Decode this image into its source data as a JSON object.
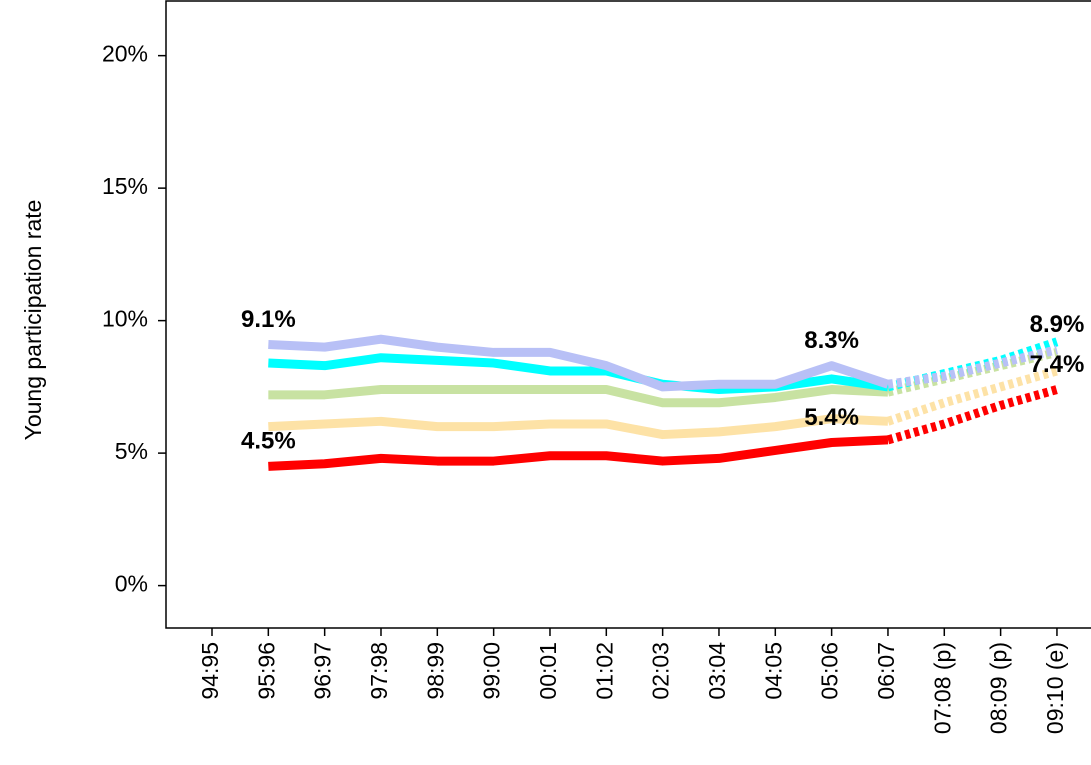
{
  "chart_data": {
    "type": "line",
    "y_label": "Young participation rate",
    "categories": [
      "94:95",
      "95:96",
      "96:97",
      "97:98",
      "98:99",
      "99:00",
      "00:01",
      "01:02",
      "02:03",
      "03:04",
      "04:05",
      "05:06",
      "06:07",
      "07:08 (p)",
      "08:09 (p)",
      "09:10 (e)"
    ],
    "dashed_from": 12,
    "ylim": [
      -1.6,
      22.1
    ],
    "yticks": [
      {
        "value": 0,
        "label": "0%"
      },
      {
        "value": 5,
        "label": "5%"
      },
      {
        "value": 10,
        "label": "10%"
      },
      {
        "value": 15,
        "label": "15%"
      },
      {
        "value": 20,
        "label": "20%"
      }
    ],
    "series": [
      {
        "color": "#ff0000",
        "values": [
          null,
          4.5,
          4.6,
          4.8,
          4.7,
          4.7,
          4.9,
          4.9,
          4.7,
          4.8,
          5.1,
          5.4,
          5.5,
          6.1,
          6.8,
          7.4
        ],
        "value_labels": [
          null,
          "4.5%",
          null,
          null,
          null,
          null,
          null,
          null,
          null,
          null,
          null,
          "5.4%",
          null,
          null,
          null,
          "7.4%"
        ]
      },
      {
        "color": "#fde2a6",
        "values": [
          null,
          6.0,
          6.1,
          6.2,
          6.0,
          6.0,
          6.1,
          6.1,
          5.7,
          5.8,
          6.0,
          6.3,
          6.2,
          6.9,
          7.5,
          8.1
        ]
      },
      {
        "color": "#c8e2a2",
        "values": [
          null,
          7.2,
          7.2,
          7.4,
          7.4,
          7.4,
          7.4,
          7.4,
          6.9,
          6.9,
          7.1,
          7.4,
          7.3,
          7.8,
          8.3,
          8.8
        ]
      },
      {
        "color": "#00ffff",
        "values": [
          null,
          8.4,
          8.3,
          8.6,
          8.5,
          8.4,
          8.1,
          8.1,
          7.6,
          7.4,
          7.5,
          7.8,
          7.5,
          8.0,
          8.5,
          9.2
        ]
      },
      {
        "color": "#b8c0f6",
        "values": [
          null,
          9.1,
          9.0,
          9.3,
          9.0,
          8.8,
          8.8,
          8.3,
          7.5,
          7.6,
          7.6,
          8.3,
          7.6,
          7.9,
          8.4,
          8.9
        ],
        "value_labels": [
          null,
          "9.1%",
          null,
          null,
          null,
          null,
          null,
          null,
          null,
          null,
          null,
          "8.3%",
          null,
          null,
          null,
          "8.9%"
        ]
      }
    ]
  }
}
